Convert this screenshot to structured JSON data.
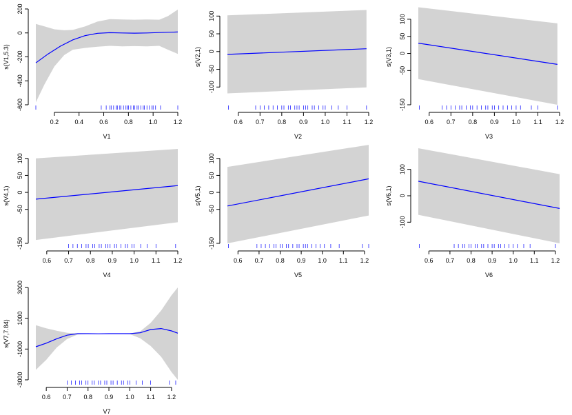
{
  "colors": {
    "band": "#d3d3d3",
    "line": "#0000ff",
    "rug": "#0000ff",
    "axis": "#000000"
  },
  "chart_data": [
    {
      "type": "line",
      "title": "",
      "xlabel": "V1",
      "ylabel": "s(V1,5.3)",
      "xlim": [
        0.05,
        1.2
      ],
      "ylim": [
        -600,
        200
      ],
      "xticks": [
        "0.2",
        "0.4",
        "0.6",
        "0.8",
        "1.0",
        "1.2"
      ],
      "xtick_values": [
        0.2,
        0.4,
        0.6,
        0.8,
        1.0,
        1.2
      ],
      "yticks": [
        "-600",
        "-400",
        "-200",
        "0",
        "200"
      ],
      "ytick_values": [
        -600,
        -400,
        -200,
        0,
        200
      ],
      "series": [
        {
          "name": "fit",
          "x": [
            0.05,
            0.15,
            0.25,
            0.35,
            0.45,
            0.55,
            0.65,
            0.75,
            0.85,
            0.95,
            1.05,
            1.15,
            1.2
          ],
          "values": [
            -250,
            -175,
            -110,
            -58,
            -22,
            -3,
            2,
            0,
            -2,
            0,
            3,
            6,
            8
          ]
        },
        {
          "name": "upper",
          "x": [
            0.05,
            0.12,
            0.2,
            0.28,
            0.35,
            0.45,
            0.55,
            0.65,
            0.75,
            0.85,
            0.95,
            1.05,
            1.12,
            1.2
          ],
          "values": [
            75,
            55,
            30,
            22,
            25,
            55,
            95,
            115,
            112,
            110,
            112,
            110,
            140,
            195
          ]
        },
        {
          "name": "lower",
          "x": [
            0.05,
            0.12,
            0.2,
            0.28,
            0.35,
            0.45,
            0.55,
            0.65,
            0.75,
            0.85,
            0.95,
            1.05,
            1.12,
            1.2
          ],
          "values": [
            -580,
            -430,
            -280,
            -185,
            -140,
            -125,
            -115,
            -108,
            -112,
            -110,
            -112,
            -108,
            -140,
            -175
          ]
        }
      ],
      "rug": [
        0.05,
        0.58,
        0.62,
        0.65,
        0.66,
        0.68,
        0.7,
        0.71,
        0.73,
        0.74,
        0.76,
        0.78,
        0.79,
        0.8,
        0.82,
        0.84,
        0.85,
        0.87,
        0.88,
        0.9,
        0.92,
        0.93,
        0.95,
        0.97,
        0.99,
        1.0,
        1.02,
        1.06,
        1.2
      ]
    },
    {
      "type": "line",
      "title": "",
      "xlabel": "V2",
      "ylabel": "s(V2,1)",
      "xlim": [
        0.55,
        1.2
      ],
      "ylim": [
        -150,
        120
      ],
      "xticks": [
        "0.6",
        "0.7",
        "0.8",
        "0.9",
        "1.0",
        "1.1",
        "1.2"
      ],
      "xtick_values": [
        0.6,
        0.7,
        0.8,
        0.9,
        1.0,
        1.1,
        1.2
      ],
      "yticks": [
        "-100",
        "-50",
        "0",
        "50",
        "100"
      ],
      "ytick_values": [
        -100,
        -50,
        0,
        50,
        100
      ],
      "series": [
        {
          "name": "fit",
          "x": [
            0.55,
            1.19
          ],
          "values": [
            -8,
            8
          ]
        },
        {
          "name": "upper",
          "x": [
            0.55,
            1.19
          ],
          "values": [
            102,
            117
          ]
        },
        {
          "name": "lower",
          "x": [
            0.55,
            1.19
          ],
          "values": [
            -118,
            -101
          ]
        }
      ],
      "rug": [
        0.555,
        0.68,
        0.7,
        0.72,
        0.74,
        0.76,
        0.78,
        0.8,
        0.81,
        0.83,
        0.84,
        0.86,
        0.87,
        0.88,
        0.9,
        0.91,
        0.92,
        0.94,
        0.95,
        0.97,
        0.99,
        1.0,
        1.03,
        1.06,
        1.1,
        1.19
      ]
    },
    {
      "type": "line",
      "title": "",
      "xlabel": "V3",
      "ylabel": "s(V3,1)",
      "xlim": [
        0.55,
        1.2
      ],
      "ylim": [
        -150,
        130
      ],
      "xticks": [
        "0.6",
        "0.7",
        "0.8",
        "0.9",
        "1.0",
        "1.1",
        "1.2"
      ],
      "xtick_values": [
        0.6,
        0.7,
        0.8,
        0.9,
        1.0,
        1.1,
        1.2
      ],
      "yticks": [
        "-150",
        "-50",
        "0",
        "50",
        "100"
      ],
      "ytick_values": [
        -150,
        -50,
        0,
        50,
        100
      ],
      "series": [
        {
          "name": "fit",
          "x": [
            0.55,
            1.19
          ],
          "values": [
            30,
            -32
          ]
        },
        {
          "name": "upper",
          "x": [
            0.55,
            1.19
          ],
          "values": [
            135,
            88
          ]
        },
        {
          "name": "lower",
          "x": [
            0.55,
            1.19
          ],
          "values": [
            -75,
            -150
          ]
        }
      ],
      "rug": [
        0.555,
        0.66,
        0.68,
        0.7,
        0.72,
        0.74,
        0.75,
        0.77,
        0.79,
        0.8,
        0.82,
        0.84,
        0.86,
        0.87,
        0.89,
        0.9,
        0.92,
        0.94,
        0.96,
        0.98,
        1.0,
        1.02,
        1.07,
        1.1,
        1.19
      ]
    },
    {
      "type": "line",
      "title": "",
      "xlabel": "V4",
      "ylabel": "s(V4,1)",
      "xlim": [
        0.55,
        1.2
      ],
      "ylim": [
        -150,
        130
      ],
      "xticks": [
        "0.6",
        "0.7",
        "0.8",
        "0.9",
        "1.0",
        "1.1",
        "1.2"
      ],
      "xtick_values": [
        0.6,
        0.7,
        0.8,
        0.9,
        1.0,
        1.1,
        1.2
      ],
      "yticks": [
        "-150",
        "-50",
        "0",
        "50",
        "100"
      ],
      "ytick_values": [
        -150,
        -50,
        0,
        50,
        100
      ],
      "series": [
        {
          "name": "fit",
          "x": [
            0.55,
            1.2
          ],
          "values": [
            -20,
            20
          ]
        },
        {
          "name": "upper",
          "x": [
            0.55,
            1.2
          ],
          "values": [
            100,
            128
          ]
        },
        {
          "name": "lower",
          "x": [
            0.55,
            1.2
          ],
          "values": [
            -140,
            -88
          ]
        }
      ],
      "rug": [
        0.7,
        0.72,
        0.74,
        0.76,
        0.78,
        0.79,
        0.81,
        0.82,
        0.84,
        0.85,
        0.87,
        0.88,
        0.89,
        0.91,
        0.92,
        0.94,
        0.96,
        0.97,
        0.99,
        1.0,
        1.03,
        1.06,
        1.1,
        1.19
      ]
    },
    {
      "type": "line",
      "title": "",
      "xlabel": "V5",
      "ylabel": "s(V5,1)",
      "xlim": [
        0.55,
        1.22
      ],
      "ylim": [
        -150,
        130
      ],
      "xticks": [
        "0.6",
        "0.7",
        "0.8",
        "0.9",
        "1.0",
        "1.1",
        "1.2"
      ],
      "xtick_values": [
        0.6,
        0.7,
        0.8,
        0.9,
        1.0,
        1.1,
        1.2
      ],
      "yticks": [
        "-150",
        "-50",
        "0",
        "50",
        "100"
      ],
      "ytick_values": [
        -150,
        -50,
        0,
        50,
        100
      ],
      "series": [
        {
          "name": "fit",
          "x": [
            0.55,
            1.22
          ],
          "values": [
            -40,
            40
          ]
        },
        {
          "name": "upper",
          "x": [
            0.55,
            1.22
          ],
          "values": [
            75,
            140
          ]
        },
        {
          "name": "lower",
          "x": [
            0.55,
            1.22
          ],
          "values": [
            -150,
            -68
          ]
        }
      ],
      "rug": [
        0.555,
        0.69,
        0.71,
        0.73,
        0.75,
        0.77,
        0.78,
        0.8,
        0.81,
        0.83,
        0.84,
        0.86,
        0.88,
        0.89,
        0.91,
        0.92,
        0.93,
        0.95,
        0.97,
        0.99,
        1.01,
        1.04,
        1.08,
        1.19,
        1.22
      ]
    },
    {
      "type": "line",
      "title": "",
      "xlabel": "V6",
      "ylabel": "s(V6,1)",
      "xlim": [
        0.55,
        1.22
      ],
      "ylim": [
        -180,
        180
      ],
      "xticks": [
        "0.6",
        "0.7",
        "0.8",
        "0.9",
        "1.0",
        "1.1",
        "1.2"
      ],
      "xtick_values": [
        0.6,
        0.7,
        0.8,
        0.9,
        1.0,
        1.1,
        1.2
      ],
      "yticks": [
        "-100",
        "0",
        "100"
      ],
      "ytick_values": [
        -100,
        0,
        100
      ],
      "series": [
        {
          "name": "fit",
          "x": [
            0.55,
            1.22
          ],
          "values": [
            55,
            -48
          ]
        },
        {
          "name": "upper",
          "x": [
            0.55,
            1.22
          ],
          "values": [
            180,
            82
          ]
        },
        {
          "name": "lower",
          "x": [
            0.55,
            1.22
          ],
          "values": [
            -72,
            -180
          ]
        }
      ],
      "rug": [
        0.555,
        0.72,
        0.74,
        0.76,
        0.77,
        0.79,
        0.8,
        0.82,
        0.83,
        0.85,
        0.86,
        0.88,
        0.9,
        0.91,
        0.93,
        0.94,
        0.96,
        0.98,
        1.0,
        1.02,
        1.05,
        1.08,
        1.2
      ]
    },
    {
      "type": "line",
      "title": "",
      "xlabel": "V7",
      "ylabel": "s(V7,7.84)",
      "xlim": [
        0.55,
        1.23
      ],
      "ylim": [
        -3000,
        3000
      ],
      "xticks": [
        "0.6",
        "0.7",
        "0.8",
        "0.9",
        "1.0",
        "1.1",
        "1.2"
      ],
      "xtick_values": [
        0.6,
        0.7,
        0.8,
        0.9,
        1.0,
        1.1,
        1.2
      ],
      "yticks": [
        "-3000",
        "-1000",
        "1000",
        "3000"
      ],
      "ytick_values": [
        -3000,
        -1000,
        1000,
        3000
      ],
      "series": [
        {
          "name": "fit",
          "x": [
            0.55,
            0.6,
            0.65,
            0.7,
            0.75,
            0.8,
            0.85,
            0.9,
            0.95,
            1.0,
            1.05,
            1.1,
            1.15,
            1.2,
            1.23
          ],
          "values": [
            -850,
            -620,
            -330,
            -100,
            0,
            0,
            -10,
            0,
            0,
            0,
            60,
            270,
            330,
            180,
            30
          ]
        },
        {
          "name": "upper",
          "x": [
            0.55,
            0.6,
            0.65,
            0.7,
            0.75,
            0.8,
            0.85,
            0.9,
            0.95,
            1.0,
            1.05,
            1.1,
            1.15,
            1.2,
            1.23
          ],
          "values": [
            550,
            350,
            190,
            60,
            15,
            10,
            5,
            10,
            10,
            15,
            150,
            700,
            1500,
            2500,
            3000
          ]
        },
        {
          "name": "lower",
          "x": [
            0.55,
            0.6,
            0.65,
            0.7,
            0.75,
            0.8,
            0.85,
            0.9,
            0.95,
            1.0,
            1.05,
            1.1,
            1.15,
            1.2,
            1.23
          ],
          "values": [
            -2350,
            -1700,
            -900,
            -350,
            -60,
            -20,
            -25,
            -20,
            -20,
            -25,
            -300,
            -800,
            -1500,
            -2500,
            -3000
          ]
        }
      ],
      "rug": [
        0.7,
        0.72,
        0.74,
        0.76,
        0.77,
        0.79,
        0.8,
        0.82,
        0.83,
        0.85,
        0.86,
        0.88,
        0.89,
        0.91,
        0.92,
        0.94,
        0.96,
        0.97,
        0.99,
        1.0,
        1.03,
        1.06,
        1.1,
        1.19,
        1.22
      ]
    }
  ]
}
